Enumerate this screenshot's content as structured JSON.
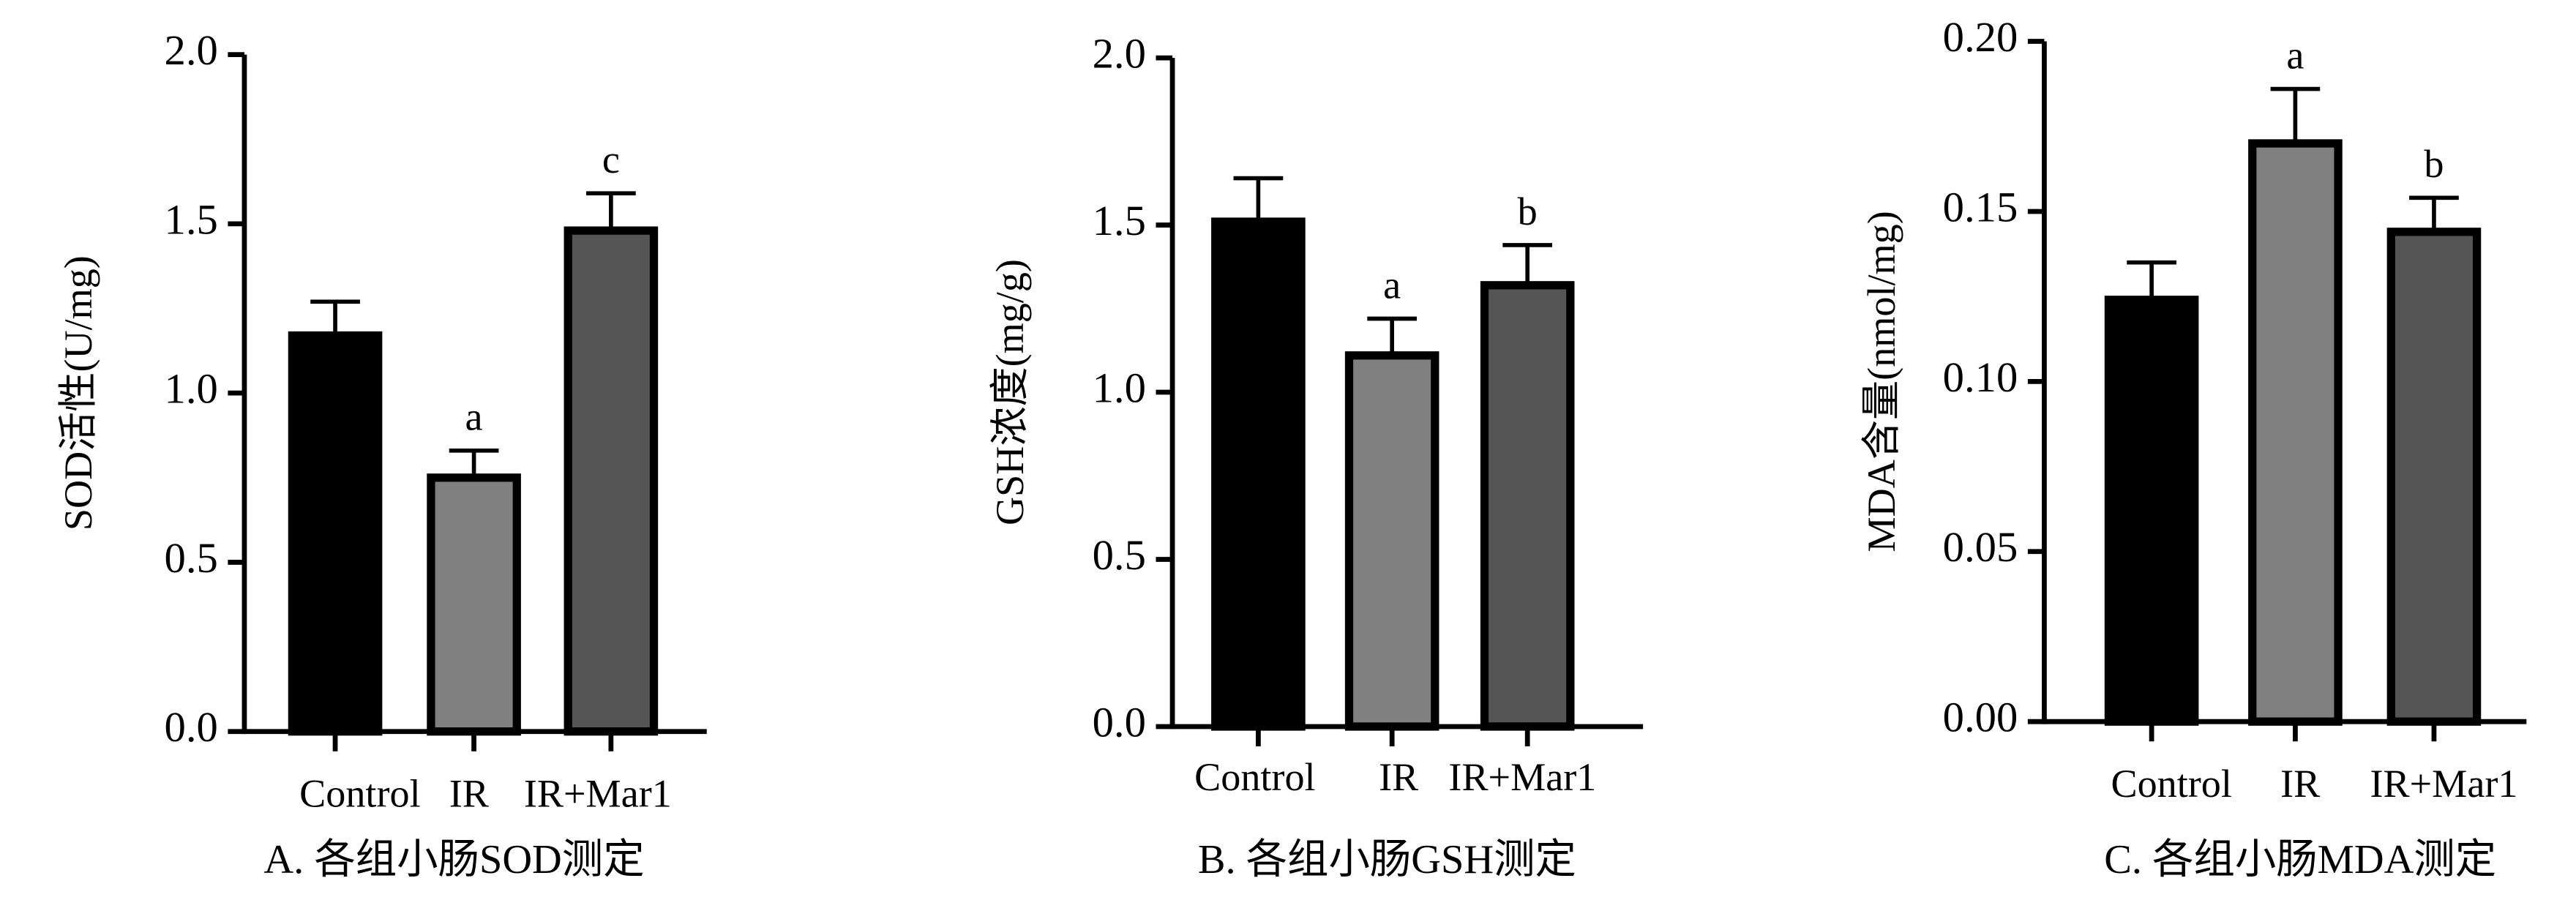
{
  "chart_data": [
    {
      "type": "bar",
      "title": "A. 各组小肠SOD测定",
      "y_label": "SOD活性(U/mg)",
      "categories": [
        "Control",
        "IR",
        "IR+Mar1"
      ],
      "values": [
        1.17,
        0.75,
        1.48
      ],
      "errors": [
        0.1,
        0.08,
        0.11
      ],
      "annotations": [
        null,
        "a",
        "c"
      ],
      "colors": [
        "#000000",
        "#808080",
        "#555555"
      ],
      "ylim": [
        0,
        2.0
      ],
      "yticks": [
        {
          "value": 0,
          "label": "0.0"
        },
        {
          "value": 0.5,
          "label": "0.5"
        },
        {
          "value": 1,
          "label": "1.0"
        },
        {
          "value": 1.5,
          "label": "1.5"
        },
        {
          "value": 2,
          "label": "2.0"
        }
      ]
    },
    {
      "type": "bar",
      "title": "B. 各组小肠GSH测定",
      "y_label": "GSH浓度(mg/g)",
      "categories": [
        "Control",
        "IR",
        "IR+Mar1"
      ],
      "values": [
        1.51,
        1.11,
        1.32
      ],
      "errors": [
        0.13,
        0.11,
        0.12
      ],
      "annotations": [
        null,
        "a",
        "b"
      ],
      "colors": [
        "#000000",
        "#808080",
        "#555555"
      ],
      "ylim": [
        0,
        2.0
      ],
      "yticks": [
        {
          "value": 0,
          "label": "0.0"
        },
        {
          "value": 0.5,
          "label": "0.5"
        },
        {
          "value": 1,
          "label": "1.0"
        },
        {
          "value": 1.5,
          "label": "1.5"
        },
        {
          "value": 2,
          "label": "2.0"
        }
      ]
    },
    {
      "type": "bar",
      "title": "C. 各组小肠MDA测定",
      "y_label": "MDA含量(nmol/mg)",
      "categories": [
        "Control",
        "IR",
        "IR+Mar1"
      ],
      "values": [
        0.124,
        0.17,
        0.144
      ],
      "errors": [
        0.011,
        0.016,
        0.01
      ],
      "annotations": [
        null,
        "a",
        "b"
      ],
      "colors": [
        "#000000",
        "#808080",
        "#555555"
      ],
      "ylim": [
        0,
        0.2
      ],
      "yticks": [
        {
          "value": 0,
          "label": "0.00"
        },
        {
          "value": 0.05,
          "label": "0.05"
        },
        {
          "value": 0.1,
          "label": "0.10"
        },
        {
          "value": 0.15,
          "label": "0.15"
        },
        {
          "value": 0.2,
          "label": "0.20"
        }
      ]
    }
  ]
}
